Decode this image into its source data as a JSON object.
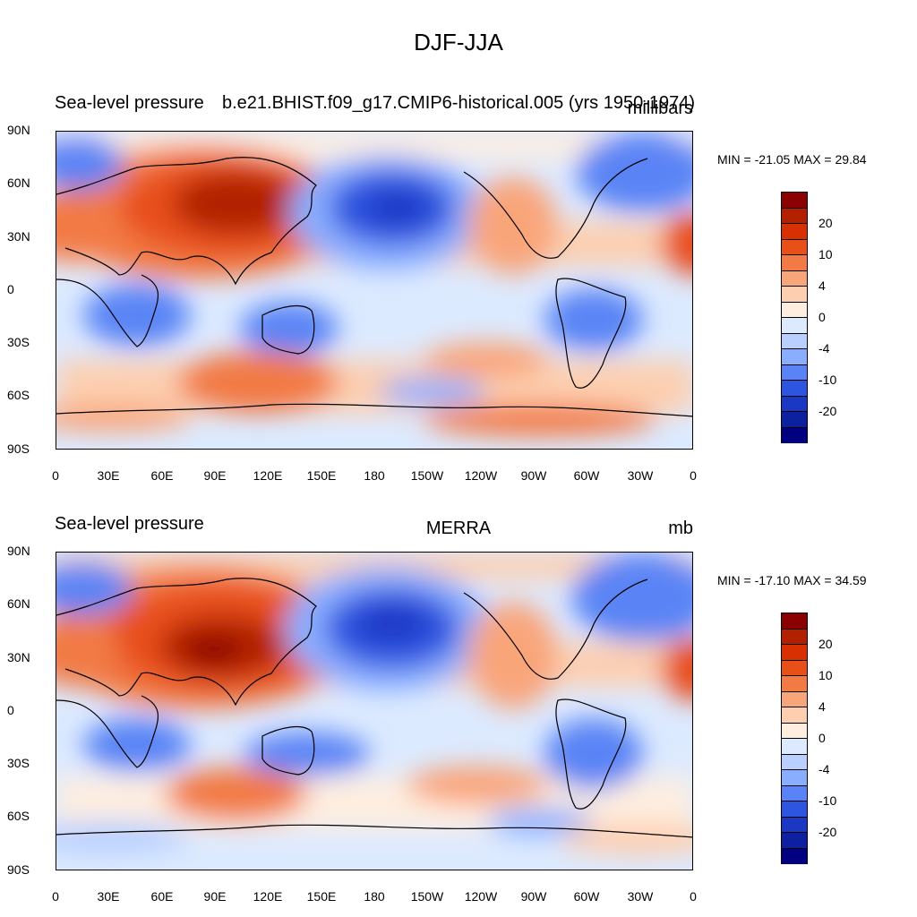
{
  "title": "DJF-JJA",
  "colors": [
    "#8b0000",
    "#b22000",
    "#d83000",
    "#e8501a",
    "#f27a45",
    "#f9a57a",
    "#fdcfb0",
    "#feeee0",
    "#dceaff",
    "#b8cfff",
    "#8aaeff",
    "#5a84f5",
    "#2e55e0",
    "#1a38c4",
    "#0c20a0",
    "#000080"
  ],
  "colorbar_labels": [
    "20",
    "10",
    "4",
    "0",
    "-4",
    "-10",
    "-20"
  ],
  "lat_labels": [
    "90N",
    "60N",
    "30N",
    "0",
    "30S",
    "60S",
    "90S"
  ],
  "lon_labels": [
    "0",
    "30E",
    "60E",
    "90E",
    "120E",
    "150E",
    "180",
    "150W",
    "120W",
    "90W",
    "60W",
    "30W",
    "0"
  ],
  "panels": [
    {
      "left_title": "Sea-level pressure",
      "center_title": "b.e21.BHIST.f09_g17.CMIP6-historical.005 (yrs 1950-1974)",
      "right_title": "millibars",
      "minmax": "MIN = -21.05 MAX =  29.84"
    },
    {
      "left_title": "Sea-level pressure",
      "center_title": "MERRA",
      "right_title": "mb",
      "minmax": "MIN = -17.10 MAX =  34.59"
    }
  ]
}
